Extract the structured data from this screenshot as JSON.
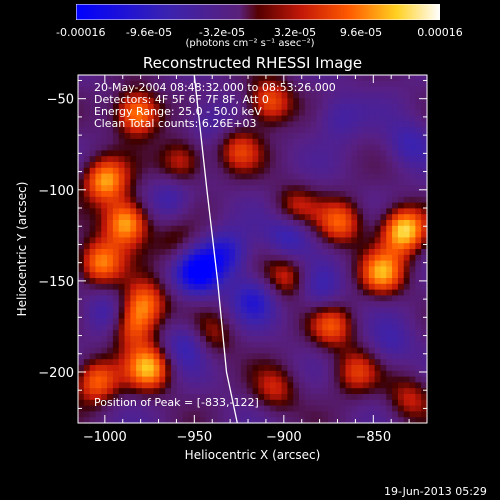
{
  "colorbar": {
    "tick_labels": [
      "-0.00016",
      "-9.6e-05",
      "-3.2e-05",
      "3.2e-05",
      "9.6e-05",
      "0.00016"
    ],
    "unit_label": "(photons cm⁻² s⁻¹ asec⁻²)"
  },
  "chart_data": {
    "type": "heatmap",
    "title": "Reconstructed RHESSI Image",
    "xlabel": "Heliocentric X (arcsec)",
    "ylabel": "Heliocentric Y (arcsec)",
    "xlim": [
      -1015,
      -820
    ],
    "ylim": [
      -228,
      -37
    ],
    "x_ticks": [
      -1000,
      -950,
      -900,
      -850
    ],
    "y_ticks": [
      -50,
      -100,
      -150,
      -200
    ],
    "value_range": [
      -0.00016,
      0.00016
    ],
    "colormap": "blue-purple-red-yellow-white",
    "annotations": [
      "20-May-2004 08:48:32.000 to 08:53:26.000",
      "Detectors: 4F 5F 6F 7F 8F, Att 0",
      "Energy Range: 25.0 - 50.0 keV",
      "Clean     Total counts: 6.26E+03"
    ],
    "peak_label": "Position of Peak = [-833,-122]",
    "peak": [
      -833,
      -122
    ],
    "limb_curve": [
      [
        -950,
        -37
      ],
      [
        -943,
        -100
      ],
      [
        -937,
        -150
      ],
      [
        -932,
        -200
      ],
      [
        -926,
        -228
      ]
    ],
    "hotspots": [
      {
        "x": -982,
        "y": -58,
        "value": 0.00014
      },
      {
        "x": -1000,
        "y": -95,
        "value": 0.00013
      },
      {
        "x": -988,
        "y": -118,
        "value": 0.00015
      },
      {
        "x": -1003,
        "y": -140,
        "value": 0.00012
      },
      {
        "x": -978,
        "y": -162,
        "value": 0.00011
      },
      {
        "x": -985,
        "y": -175,
        "value": 0.0001
      },
      {
        "x": -975,
        "y": -198,
        "value": 0.00013
      },
      {
        "x": -1005,
        "y": -205,
        "value": 0.00011
      },
      {
        "x": -957,
        "y": -85,
        "value": 9e-05
      },
      {
        "x": -925,
        "y": -78,
        "value": 8e-05
      },
      {
        "x": -908,
        "y": -52,
        "value": 0.00011
      },
      {
        "x": -894,
        "y": -110,
        "value": 7e-05
      },
      {
        "x": -868,
        "y": -118,
        "value": 0.0001
      },
      {
        "x": -833,
        "y": -122,
        "value": 0.00016
      },
      {
        "x": -845,
        "y": -146,
        "value": 0.00012
      },
      {
        "x": -873,
        "y": -175,
        "value": 9e-05
      },
      {
        "x": -898,
        "y": -148,
        "value": 8e-05
      },
      {
        "x": -860,
        "y": -200,
        "value": 8e-05
      },
      {
        "x": -905,
        "y": -210,
        "value": 7e-05
      },
      {
        "x": -960,
        "y": -130,
        "value": 5e-05
      },
      {
        "x": -940,
        "y": -180,
        "value": 6e-05
      },
      {
        "x": -830,
        "y": -215,
        "value": 7e-05
      }
    ],
    "coldspots": [
      {
        "x": -948,
        "y": -145,
        "value": -0.00014
      },
      {
        "x": -932,
        "y": -135,
        "value": -9e-05
      },
      {
        "x": -917,
        "y": -160,
        "value": -8e-05
      },
      {
        "x": -897,
        "y": -125,
        "value": -8e-05
      },
      {
        "x": -955,
        "y": -185,
        "value": -7e-05
      },
      {
        "x": -880,
        "y": -155,
        "value": -6e-05
      },
      {
        "x": -963,
        "y": -105,
        "value": -6e-05
      },
      {
        "x": -870,
        "y": -60,
        "value": -5e-05
      },
      {
        "x": -1000,
        "y": -168,
        "value": -6e-05
      },
      {
        "x": -942,
        "y": -62,
        "value": -5e-05
      },
      {
        "x": -840,
        "y": -185,
        "value": -5e-05
      },
      {
        "x": -830,
        "y": -75,
        "value": -6e-05
      }
    ]
  },
  "footer": {
    "timestamp": "19-Jun-2013 05:29"
  }
}
